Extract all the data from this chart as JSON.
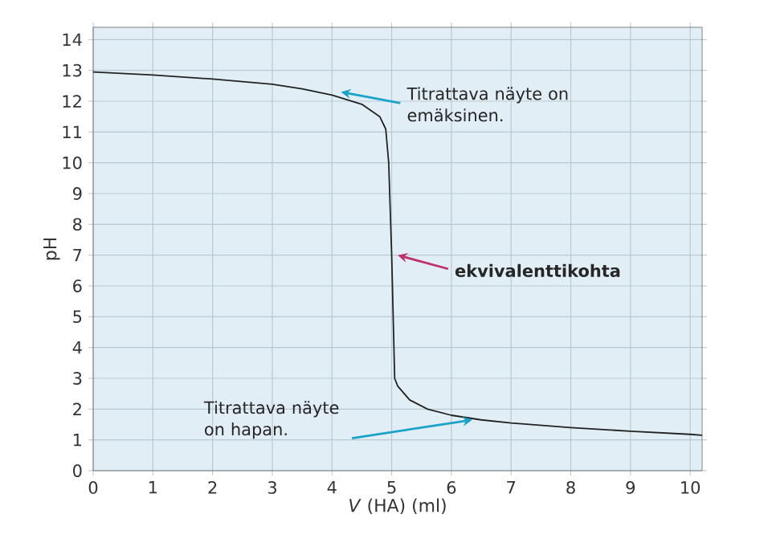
{
  "chart_data": {
    "type": "line",
    "xlabel": "*V* (HA) (ml)",
    "ylabel": "pH",
    "x": [
      0,
      1,
      2,
      3,
      3.5,
      4,
      4.5,
      4.8,
      4.9,
      4.95,
      5,
      5.05,
      5.1,
      5.3,
      5.6,
      6,
      6.5,
      7,
      8,
      9,
      10,
      10.2
    ],
    "series": [
      {
        "color": "#222222",
        "values": [
          12.95,
          12.85,
          12.72,
          12.55,
          12.4,
          12.2,
          11.9,
          11.5,
          11.1,
          10,
          7,
          3,
          2.75,
          2.3,
          2.0,
          1.8,
          1.65,
          1.55,
          1.4,
          1.28,
          1.18,
          1.15
        ]
      }
    ],
    "xlim": [
      0,
      10.2
    ],
    "ylim": [
      0,
      14.4
    ],
    "xticks": [
      0,
      1,
      2,
      3,
      4,
      5,
      6,
      7,
      8,
      9,
      10
    ],
    "yticks": [
      0,
      1,
      2,
      3,
      4,
      5,
      6,
      7,
      8,
      9,
      10,
      11,
      12,
      13,
      14
    ],
    "grid": true,
    "marker": "none",
    "line_style": "solid",
    "annotations": [
      {
        "text": "Titrattava näyte on emäksinen.",
        "x": 4.15,
        "y": 12.3
      },
      {
        "text": "ekvivalenttikohta",
        "x": 5.1,
        "y": 7
      },
      {
        "text": "Titrattava näyte on hapan.",
        "x": 6.35,
        "y": 1.65
      }
    ]
  }
}
